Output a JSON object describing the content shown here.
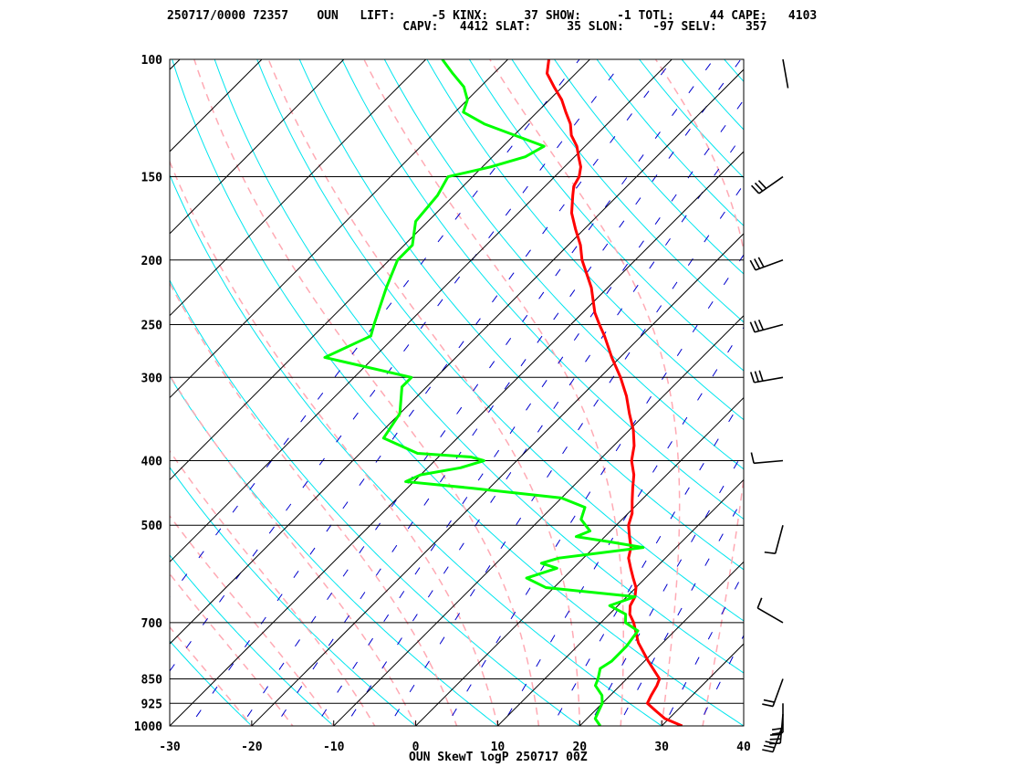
{
  "header": {
    "line1": "250717/0000 72357    OUN   LIFT:     -5 KINX:     37 SHOW:     -1 TOTL:     44 CAPE:   4103",
    "line2": "                                 CAPV:   4412 SLAT:     35 SLON:    -97 SELV:    357"
  },
  "footer": "OUN SkewT logP 250717 00Z",
  "colors": {
    "temperature": "#ff0000",
    "dewpoint": "#00ff00",
    "isotherm": "#000000",
    "dry_adiabat": "#00e5ee",
    "moist_adiabat": "#ffaab4",
    "mixing_ratio": "#0000cc",
    "wind_barb": "#000000"
  },
  "chart_data": {
    "type": "skewt",
    "xlabel": "",
    "ylabel": "",
    "xlim": [
      -30,
      40
    ],
    "ylim": [
      1000,
      100
    ],
    "x_ticks": [
      "-30",
      "-20",
      "-10",
      "0",
      "10",
      "20",
      "30",
      "40"
    ],
    "pressure_levels": [
      "100",
      "150",
      "200",
      "250",
      "300",
      "400",
      "500",
      "700",
      "850",
      "925",
      "1000"
    ],
    "log_scale_y": true,
    "temperature": [
      [
        1000,
        32.5
      ],
      [
        975,
        29.5
      ],
      [
        950,
        27.5
      ],
      [
        925,
        25.5
      ],
      [
        900,
        25.0
      ],
      [
        870,
        24.5
      ],
      [
        850,
        24.0
      ],
      [
        800,
        20.5
      ],
      [
        750,
        17.0
      ],
      [
        700,
        14.0
      ],
      [
        680,
        12.5
      ],
      [
        660,
        11.5
      ],
      [
        640,
        11.0
      ],
      [
        620,
        10.0
      ],
      [
        600,
        8.5
      ],
      [
        580,
        7.0
      ],
      [
        560,
        5.5
      ],
      [
        540,
        4.5
      ],
      [
        520,
        3.0
      ],
      [
        500,
        1.5
      ],
      [
        480,
        0.5
      ],
      [
        460,
        -1.0
      ],
      [
        440,
        -2.5
      ],
      [
        420,
        -4.0
      ],
      [
        400,
        -6.0
      ],
      [
        380,
        -7.5
      ],
      [
        360,
        -9.5
      ],
      [
        340,
        -12.0
      ],
      [
        320,
        -14.5
      ],
      [
        300,
        -17.5
      ],
      [
        280,
        -21.0
      ],
      [
        260,
        -24.5
      ],
      [
        250,
        -26.5
      ],
      [
        240,
        -28.5
      ],
      [
        220,
        -32.0
      ],
      [
        200,
        -36.5
      ],
      [
        190,
        -38.5
      ],
      [
        180,
        -41.0
      ],
      [
        170,
        -43.5
      ],
      [
        160,
        -45.5
      ],
      [
        155,
        -46.5
      ],
      [
        150,
        -47.0
      ],
      [
        145,
        -48.0
      ],
      [
        140,
        -49.5
      ],
      [
        135,
        -51.0
      ],
      [
        130,
        -53.0
      ],
      [
        125,
        -54.5
      ],
      [
        120,
        -56.5
      ],
      [
        115,
        -58.5
      ],
      [
        110,
        -61.0
      ],
      [
        105,
        -63.5
      ],
      [
        100,
        -65.0
      ]
    ],
    "dewpoint": [
      [
        1000,
        22.5
      ],
      [
        975,
        21.0
      ],
      [
        950,
        20.5
      ],
      [
        925,
        20.0
      ],
      [
        900,
        19.0
      ],
      [
        870,
        17.0
      ],
      [
        850,
        16.5
      ],
      [
        820,
        15.5
      ],
      [
        800,
        16.0
      ],
      [
        760,
        16.0
      ],
      [
        720,
        15.5
      ],
      [
        700,
        13.0
      ],
      [
        680,
        12.0
      ],
      [
        660,
        9.0
      ],
      [
        640,
        11.0
      ],
      [
        620,
        -1.0
      ],
      [
        600,
        -4.5
      ],
      [
        580,
        -2.0
      ],
      [
        570,
        -4.5
      ],
      [
        560,
        -3.0
      ],
      [
        540,
        6.0
      ],
      [
        530,
        1.5
      ],
      [
        520,
        -3.5
      ],
      [
        510,
        -2.5
      ],
      [
        490,
        -5.0
      ],
      [
        470,
        -6.0
      ],
      [
        455,
        -10.0
      ],
      [
        440,
        -22.0
      ],
      [
        430,
        -31.0
      ],
      [
        420,
        -30.0
      ],
      [
        410,
        -26.0
      ],
      [
        400,
        -24.0
      ],
      [
        395,
        -26.0
      ],
      [
        390,
        -33.0
      ],
      [
        370,
        -39.0
      ],
      [
        340,
        -40.0
      ],
      [
        310,
        -43.0
      ],
      [
        300,
        -43.0
      ],
      [
        280,
        -56.0
      ],
      [
        260,
        -53.0
      ],
      [
        250,
        -54.0
      ],
      [
        220,
        -57.0
      ],
      [
        200,
        -59.0
      ],
      [
        190,
        -59.0
      ],
      [
        175,
        -61.5
      ],
      [
        160,
        -62.0
      ],
      [
        150,
        -63.0
      ],
      [
        145,
        -59.0
      ],
      [
        140,
        -56.0
      ],
      [
        135,
        -55.0
      ],
      [
        125,
        -65.0
      ],
      [
        120,
        -69.0
      ],
      [
        115,
        -70.0
      ],
      [
        110,
        -72.0
      ],
      [
        105,
        -75.0
      ],
      [
        100,
        -78.0
      ]
    ],
    "wind_barbs_levels": [
      "995",
      "960",
      "925",
      "850",
      "700",
      "500",
      "400",
      "300",
      "250",
      "200",
      "150",
      "100"
    ]
  }
}
